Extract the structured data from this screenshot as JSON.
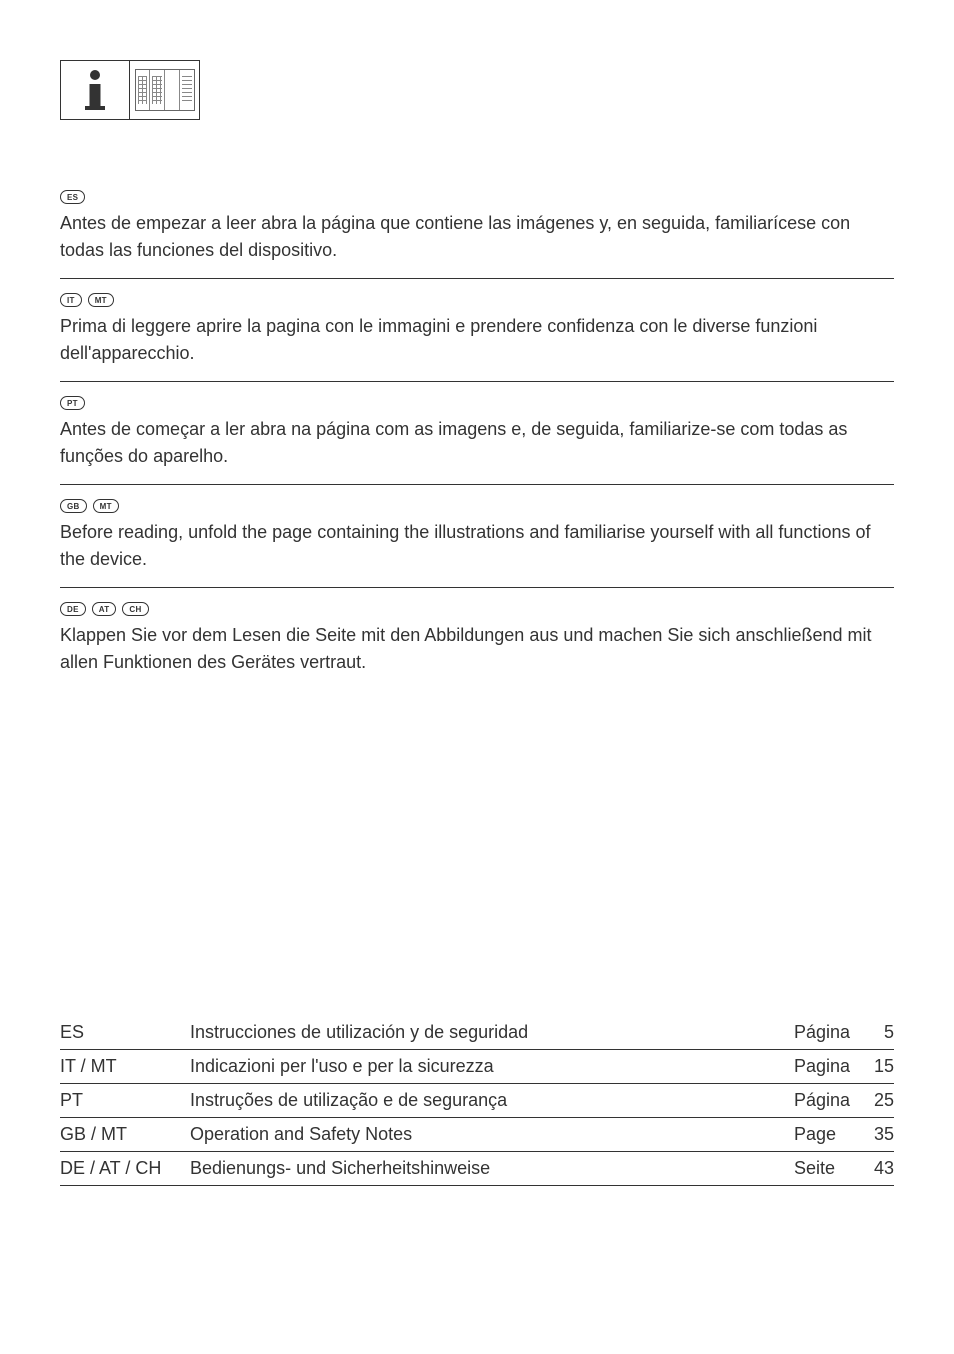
{
  "sections": [
    {
      "codes": [
        "ES"
      ],
      "text": "Antes de empezar a leer abra la página que contiene las imágenes y, en seguida, familiarícese con todas las funciones del dispositivo.",
      "bordered": true
    },
    {
      "codes": [
        "IT",
        "MT"
      ],
      "text": "Prima di leggere aprire la pagina con le immagini e prendere confidenza con le diverse funzioni dell'apparecchio.",
      "bordered": true
    },
    {
      "codes": [
        "PT"
      ],
      "text": "Antes de começar a ler abra na página com as imagens e, de seguida, familiarize-se com todas as funções do aparelho.",
      "bordered": true
    },
    {
      "codes": [
        "GB",
        "MT"
      ],
      "text": "Before reading, unfold the page containing the illustrations and familiarise yourself with all functions of the device.",
      "bordered": true
    },
    {
      "codes": [
        "DE",
        "AT",
        "CH"
      ],
      "text": "Klappen Sie vor dem Lesen die Seite mit den Abbildungen aus und machen Sie sich anschließend mit allen Funktionen des Gerätes vertraut.",
      "bordered": false
    }
  ],
  "toc": [
    {
      "code": "ES",
      "title": "Instrucciones de utilización y de seguridad",
      "pagelabel": "Página",
      "num": "5"
    },
    {
      "code": "IT / MT",
      "title": "Indicazioni per l'uso e per la sicurezza",
      "pagelabel": "Pagina",
      "num": "15"
    },
    {
      "code": "PT",
      "title": "Instruções de utilização e de segurança",
      "pagelabel": "Página",
      "num": "25"
    },
    {
      "code": "GB / MT",
      "title": "Operation and Safety Notes",
      "pagelabel": "Page",
      "num": "35"
    },
    {
      "code": "DE / AT / CH",
      "title": "Bedienungs- und Sicherheitshinweise",
      "pagelabel": "Seite",
      "num": "43"
    }
  ],
  "colors": {
    "text": "#333333",
    "bg": "#ffffff",
    "border": "#333333"
  }
}
